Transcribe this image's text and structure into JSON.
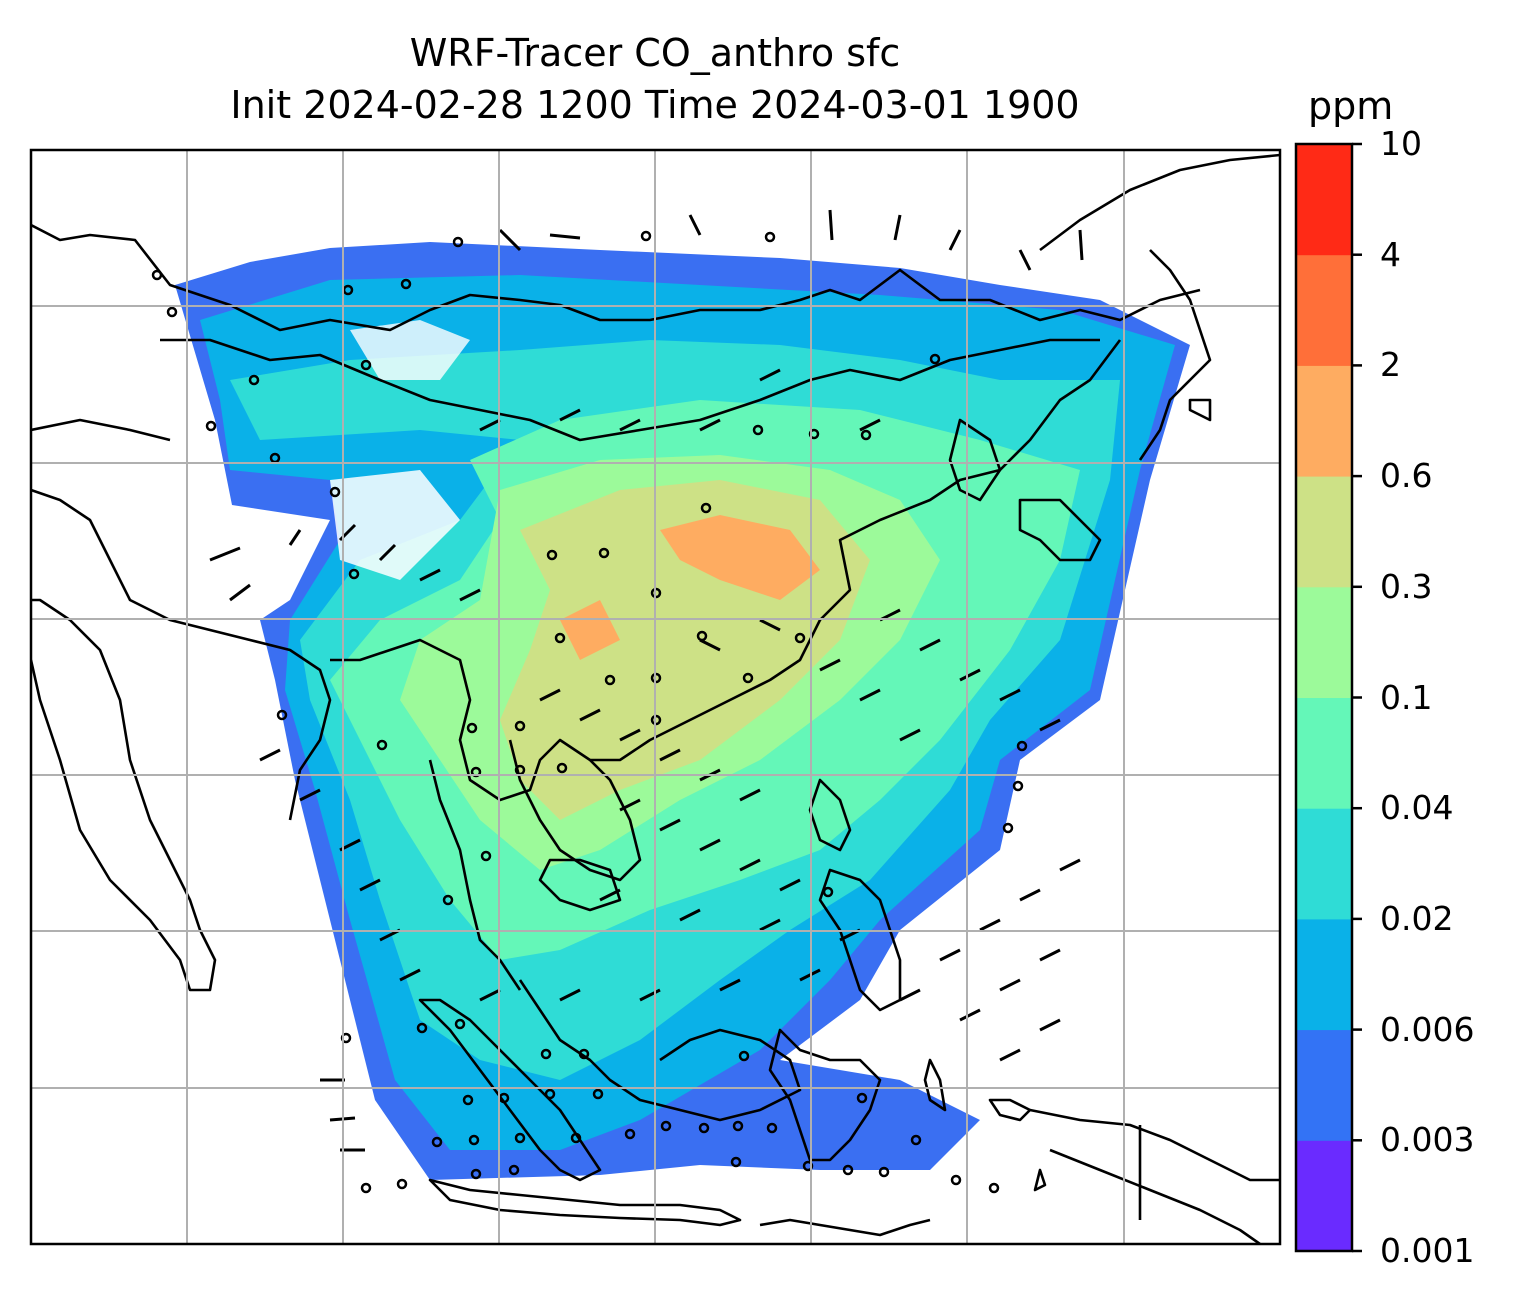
{
  "title": {
    "line1": "WRF-Tracer CO_anthro sfc",
    "line2": "Init 2024-02-28 1200 Time 2024-03-01 1900"
  },
  "colorbar": {
    "unit": "ppm",
    "levels": [
      "0.001",
      "0.003",
      "0.006",
      "0.02",
      "0.04",
      "0.1",
      "0.3",
      "0.6",
      "2",
      "4",
      "10"
    ],
    "colors": [
      "#6a2bff",
      "#3373f5",
      "#0ab1e8",
      "#2fdcd6",
      "#64f7b8",
      "#9cfa9a",
      "#cde186",
      "#feac61",
      "#ff6f39",
      "#ff2a16"
    ]
  },
  "map": {
    "gridlines": true,
    "content": "surface anthropogenic CO tracer (ppm) with wind barbs over Southeast and East Asia"
  }
}
